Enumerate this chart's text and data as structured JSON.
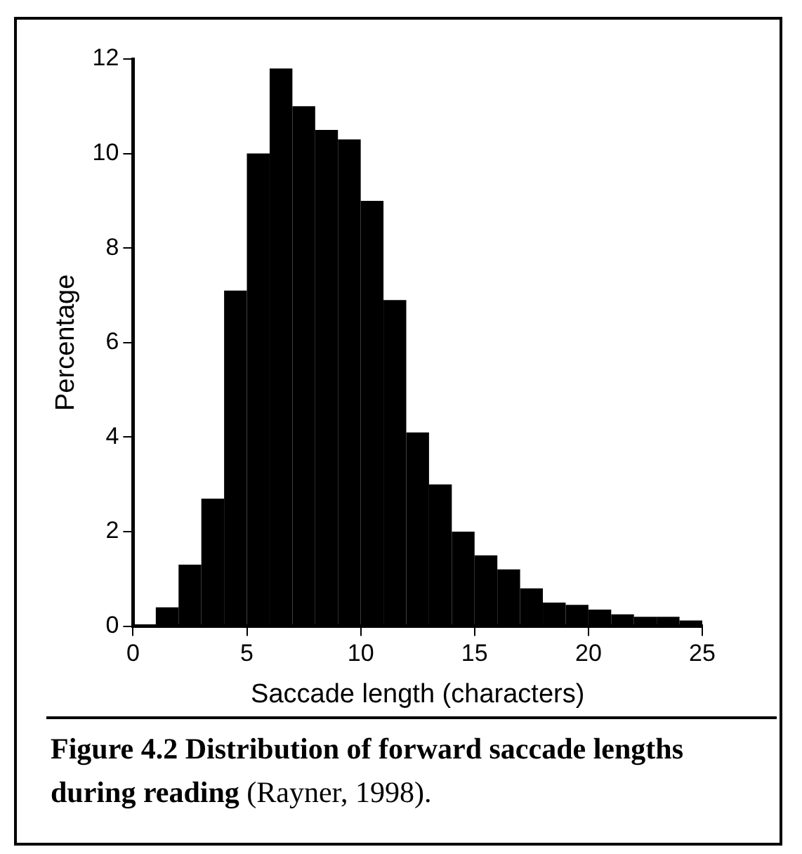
{
  "chart_data": {
    "type": "histogram",
    "title": "Figure 4.2 Distribution of forward saccade lengths during reading",
    "annotations": [
      "(Rayner, 1998)."
    ],
    "xlabel": "Saccade length (characters)",
    "ylabel": "Percentage",
    "bins": [
      1,
      2,
      3,
      4,
      5,
      6,
      7,
      8,
      9,
      10,
      11,
      12,
      13,
      14,
      15,
      16,
      17,
      18,
      19,
      20,
      21,
      22,
      23,
      24,
      25
    ],
    "values": [
      0.4,
      1.3,
      2.7,
      7.1,
      10,
      11.8,
      11,
      10.5,
      10.3,
      9,
      6.9,
      4.1,
      3,
      2,
      1.5,
      1.2,
      0.8,
      0.5,
      0.45,
      0.35,
      0.25,
      0.2,
      0.2,
      0.12
    ],
    "color": "#000000",
    "xlim": [
      0,
      25
    ],
    "xticks": [
      0,
      5,
      10,
      15,
      20,
      25
    ],
    "ylim": [
      0,
      12
    ],
    "yticks": [
      0,
      2,
      4,
      6,
      8,
      10,
      12
    ],
    "grid": false,
    "legend": false
  }
}
